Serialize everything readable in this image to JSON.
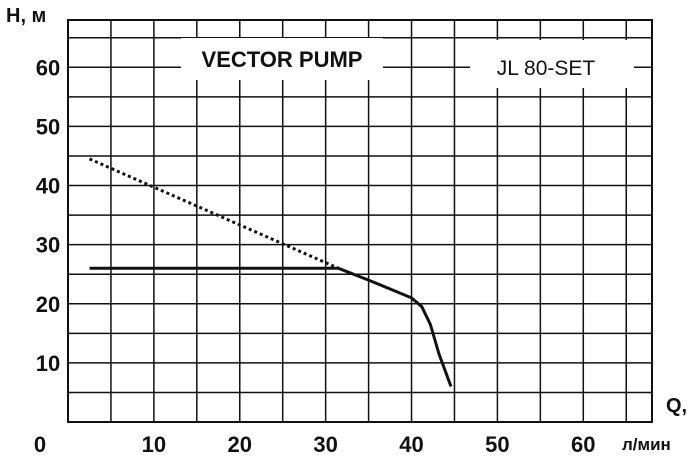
{
  "chart_data": {
    "type": "line",
    "brand": "VECTOR PUMP",
    "model": "JL 80-SET",
    "ylabel": "H, м",
    "xlabel_top": "Q,",
    "xlabel_bottom": "л/мин",
    "xlim": [
      0,
      68
    ],
    "ylim": [
      0,
      68
    ],
    "grid": true,
    "x_ticks": [
      0,
      10,
      20,
      30,
      40,
      50,
      60
    ],
    "y_ticks": [
      10,
      20,
      30,
      40,
      50,
      60
    ],
    "x_origin_label": "0",
    "series": [
      {
        "style": "dotted",
        "x": [
          2.5,
          31.5
        ],
        "y": [
          44.5,
          26
        ]
      },
      {
        "style": "solid",
        "x": [
          2.5,
          31.5,
          35,
          38,
          40,
          41.2,
          42.2,
          43.2,
          44.6
        ],
        "y": [
          26,
          26,
          24,
          22.2,
          21,
          19.5,
          16.5,
          11.5,
          6
        ]
      }
    ]
  }
}
